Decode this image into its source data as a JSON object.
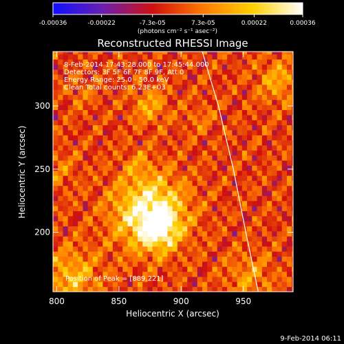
{
  "chart_data": {
    "type": "heatmap",
    "title": "Reconstructed RHESSI Image",
    "xlabel": "Heliocentric X (arcsec)",
    "ylabel": "Heliocentric Y (arcsec)",
    "xlim": [
      797,
      990
    ],
    "ylim": [
      153,
      343
    ],
    "xticks": [
      800,
      850,
      900,
      950
    ],
    "yticks": [
      200,
      250,
      300
    ],
    "colorbar": {
      "label": "(photons cm⁻² s⁻¹ asec⁻²)",
      "range": [
        -0.00036,
        0.00036
      ],
      "ticks": [
        "-0.00036",
        "-0.00022",
        "-7.3e-05",
        "7.3e-05",
        "0.00022",
        "0.00036"
      ],
      "tick_values": [
        -0.00036,
        -0.00022,
        -7.3e-05,
        7.3e-05,
        0.00022,
        0.00036
      ],
      "colors": [
        "#1010ff",
        "#6a1fb0",
        "#d01010",
        "#ff7a00",
        "#ffd000",
        "#ffffff"
      ]
    },
    "annotations": [
      "8-Feb-2014 17:43:28.000 to 17:45:44.000",
      "Detectors: 3F 5F 6F 7F 8F 9F, Att 0",
      "Energy Range: 25.0 - 50.0 keV",
      "Clean     Total counts: 6.23E+03"
    ],
    "peak_label": "Position of Peak = [889,221]",
    "peak_position": [
      889,
      221
    ],
    "limb_curve": [
      [
        917,
        343
      ],
      [
        930,
        300
      ],
      [
        942,
        250
      ],
      [
        952,
        200
      ],
      [
        962,
        153
      ]
    ],
    "sources": [
      {
        "x": 875,
        "y": 216,
        "sigma": 20,
        "amp": 0.00036
      },
      {
        "x": 882,
        "y": 203,
        "sigma": 10,
        "amp": 0.00025
      },
      {
        "x": 875,
        "y": 300,
        "sigma": 10,
        "amp": 0.00015
      },
      {
        "x": 978,
        "y": 320,
        "sigma": 12,
        "amp": 0.00015
      },
      {
        "x": 812,
        "y": 165,
        "sigma": 16,
        "amp": 0.00018
      },
      {
        "x": 955,
        "y": 165,
        "sigma": 14,
        "amp": 0.00012
      },
      {
        "x": 800,
        "y": 250,
        "sigma": 12,
        "amp": 8e-05
      },
      {
        "x": 865,
        "y": 255,
        "sigma": 8,
        "amp": 8e-05
      },
      {
        "x": 915,
        "y": 290,
        "sigma": 9,
        "amp": 7e-05
      },
      {
        "x": 820,
        "y": 310,
        "sigma": 9,
        "amp": 7e-05
      }
    ]
  },
  "timestamp": "9-Feb-2014 06:11"
}
